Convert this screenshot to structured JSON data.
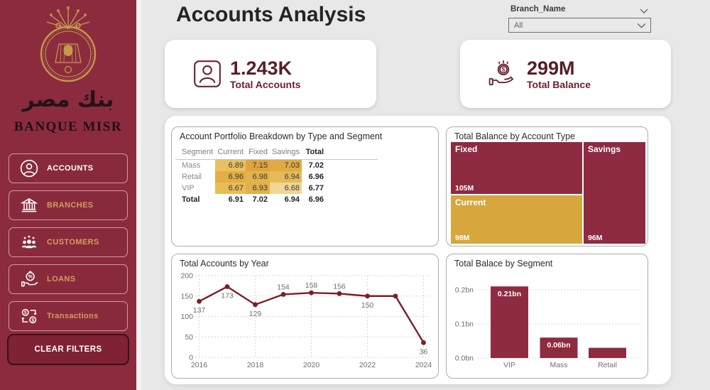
{
  "header": {
    "title": "Accounts Analysis"
  },
  "slicer": {
    "label": "Branch_Name",
    "value": "All"
  },
  "sidebar": {
    "brand_arabic": "بنك مصر",
    "brand_name": "BANQUE MISR",
    "items": [
      {
        "label": "ACCOUNTS",
        "icon": "accounts-icon",
        "active": true
      },
      {
        "label": "BRANCHES",
        "icon": "branches-icon",
        "active": false
      },
      {
        "label": "CUSTOMERS",
        "icon": "customers-icon",
        "active": false
      },
      {
        "label": "LOANS",
        "icon": "loans-icon",
        "active": false
      },
      {
        "label": "Transactions",
        "icon": "transactions-icon",
        "active": false
      }
    ],
    "clear_filters_label": "CLEAR FILTERS"
  },
  "kpis": [
    {
      "value": "1.243K",
      "label": "Total Accounts",
      "icon": "total-accounts-icon"
    },
    {
      "value": "299M",
      "label": "Total Balance",
      "icon": "total-balance-icon"
    }
  ],
  "matrix": {
    "title": "Account Portfolio Breakdown by Type and Segment",
    "columns": [
      "Segment",
      "Current",
      "Fixed",
      "Savings",
      "Total"
    ],
    "rows": [
      {
        "segment": "Mass",
        "cells": [
          {
            "v": "6.89",
            "bg": "#E9C05C"
          },
          {
            "v": "7.15",
            "bg": "#DFA53C"
          },
          {
            "v": "7.03",
            "bg": "#E1AA43"
          }
        ],
        "total": "7.02"
      },
      {
        "segment": "Retail",
        "cells": [
          {
            "v": "6.96",
            "bg": "#E2AE45"
          },
          {
            "v": "6.98",
            "bg": "#E4B34C"
          },
          {
            "v": "6.94",
            "bg": "#E6BA57"
          }
        ],
        "total": "6.96"
      },
      {
        "segment": "VIP",
        "cells": [
          {
            "v": "6.67",
            "bg": "#E8BD55"
          },
          {
            "v": "6.93",
            "bg": "#E3B04A"
          },
          {
            "v": "6.68",
            "bg": "#F1D694"
          }
        ],
        "total": "6.77"
      }
    ],
    "total_row": {
      "segment": "Total",
      "cells": [
        "6.91",
        "7.02",
        "6.94"
      ],
      "total": "6.96"
    }
  },
  "chart_data": [
    {
      "type": "treemap",
      "title": "Total Balance by Account Type",
      "items": [
        {
          "label": "Fixed",
          "value": 105,
          "display": "105M",
          "color": "#8E2B41"
        },
        {
          "label": "Current",
          "value": 98,
          "display": "98M",
          "color": "#D7A63C"
        },
        {
          "label": "Savings",
          "value": 96,
          "display": "96M",
          "color": "#8E2B41"
        }
      ],
      "total_display": "299M"
    },
    {
      "type": "line",
      "title": "Total Accounts by Year",
      "x": [
        2016,
        2017,
        2018,
        2019,
        2020,
        2021,
        2022,
        2023,
        2024
      ],
      "values": [
        137,
        173,
        129,
        154,
        158,
        156,
        150,
        150,
        36
      ],
      "labels": [
        "137",
        "173",
        "129",
        "154",
        "158",
        "156",
        "150",
        "",
        "36"
      ],
      "label_pos": [
        "below",
        "below",
        "below",
        "above",
        "above",
        "above",
        "below",
        "none",
        "below"
      ],
      "xticks": [
        2016,
        2018,
        2020,
        2022,
        2024
      ],
      "yticks": [
        0,
        50,
        100,
        150,
        200
      ],
      "ylim": [
        0,
        200
      ],
      "xlabel": "",
      "ylabel": "",
      "grid": true,
      "color": "#7A1F2B"
    },
    {
      "type": "bar",
      "title": "Total Balace by Segment",
      "categories": [
        "VIP",
        "Mass",
        "Retail"
      ],
      "values": [
        0.21,
        0.06,
        0.03
      ],
      "bar_labels": [
        "0.21bn",
        "0.06bn",
        ""
      ],
      "yticks": [
        0,
        0.1,
        0.2
      ],
      "ytick_labels": [
        "0.0bn",
        "0.1bn",
        "0.2bn"
      ],
      "ylim": [
        0,
        0.25
      ],
      "xlabel": "",
      "ylabel": "",
      "grid": true,
      "color": "#8E2B41"
    }
  ],
  "colors": {
    "page_bg": "#E8E8E8",
    "sidebar": "#8C2B3E",
    "maroon": "#8E2B41",
    "gold": "#D7A63C",
    "line_maroon": "#7A1F2B",
    "kpi_text": "#571E27",
    "nav_gold": "#D29E5F",
    "axis_text": "#6E6E6E"
  }
}
